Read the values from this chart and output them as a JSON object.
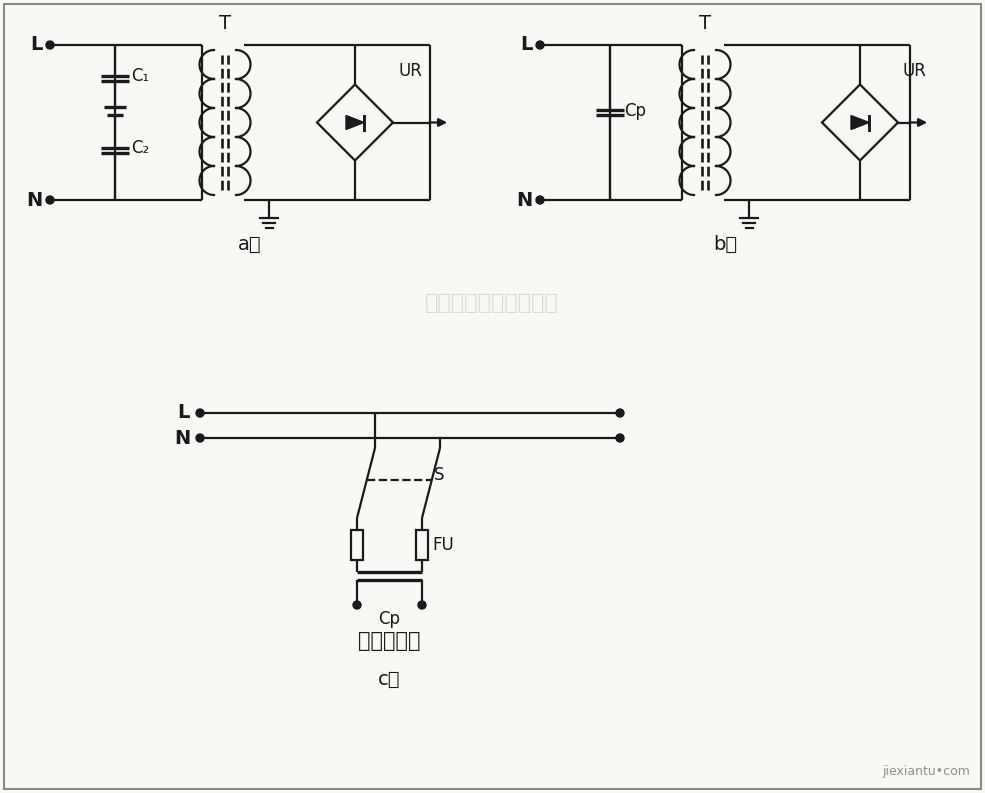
{
  "bg_color": "#f8f8f5",
  "line_color": "#1a1a1a",
  "lw": 1.6,
  "watermark": "杭州将睿科技有限公司",
  "label_L": "L",
  "label_N": "N",
  "label_T": "T",
  "label_UR": "UR",
  "label_C1": "C₁",
  "label_C2": "C₂",
  "label_Cp": "Cp",
  "label_S": "S",
  "label_FU": "FU",
  "label_zu": "至用电产品",
  "watermark_color": "#c8c8c8",
  "site_tag": "jiexiantu•com",
  "border_color": "#888888"
}
